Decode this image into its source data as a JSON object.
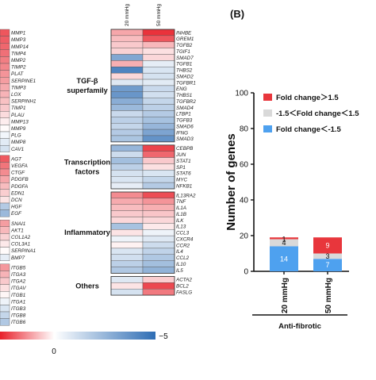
{
  "heatmap": {
    "column_headers": [
      "20 mmHg",
      "50 mmHg"
    ],
    "colorbar": {
      "tick_min": "0",
      "tick_max": "−5"
    },
    "left_genes": [
      "MMP1",
      "MMP3",
      "MMP14",
      "TIMP4",
      "MMP2",
      "TIMP2",
      "PLAT",
      "SERPINE1",
      "TIMP3",
      "LOX",
      "SERPINH1",
      "TIMP1",
      "PLAU",
      "MMP13",
      "MMP9",
      "PLG",
      "MMP8",
      "CAV1",
      "AGT",
      "VEGFA",
      "CTGF",
      "PDGFB",
      "PDGFA",
      "EDN1",
      "DCN",
      "HGF",
      "EGF",
      "SNAI1",
      "AKT1",
      "COL1A2",
      "COL3A1",
      "SERPINA1",
      "BMP7",
      "ITGB5",
      "ITGA3",
      "ITGA2",
      "ITGAV",
      "ITGB1",
      "ITGA1",
      "ITGB3",
      "ITGB8",
      "ITGB6"
    ],
    "left_values": [
      3.8,
      3.6,
      3.4,
      3.2,
      2.9,
      2.7,
      2.4,
      2.2,
      1.9,
      1.7,
      1.4,
      1.2,
      0.8,
      0.4,
      0.1,
      -0.3,
      -0.7,
      -1.0,
      3.7,
      3.1,
      2.6,
      2.0,
      1.5,
      1.1,
      0.6,
      -1.8,
      -2.4,
      2.2,
      1.6,
      1.0,
      0.5,
      0.1,
      -0.6,
      2.3,
      1.7,
      1.2,
      0.7,
      0.2,
      -0.4,
      -0.9,
      -1.4,
      -1.9
    ],
    "right_groups": [
      {
        "name": "TGF-β superfamily",
        "genes": [
          {
            "gene": "INHBE",
            "v20": 2.0,
            "v50": 4.6
          },
          {
            "gene": "GREM1",
            "v20": 1.5,
            "v50": 3.8
          },
          {
            "gene": "TGFB2",
            "v20": 1.2,
            "v50": 1.6
          },
          {
            "gene": "TGIF1",
            "v20": 1.0,
            "v50": 0.7
          },
          {
            "gene": "SMAD7",
            "v20": -3.0,
            "v50": 0.9
          },
          {
            "gene": "TGFB1",
            "v20": 1.8,
            "v50": -0.6
          },
          {
            "gene": "THBS2",
            "v20": -4.2,
            "v50": -0.9
          },
          {
            "gene": "SMAD2",
            "v20": 0.9,
            "v50": -1.0
          },
          {
            "gene": "TGFBR1",
            "v20": -0.8,
            "v50": -0.7
          },
          {
            "gene": "ENG",
            "v20": -3.4,
            "v50": -1.3
          },
          {
            "gene": "THBS1",
            "v20": -3.6,
            "v50": -1.1
          },
          {
            "gene": "TGFBR2",
            "v20": -2.8,
            "v50": -1.4
          },
          {
            "gene": "SMAD4",
            "v20": -2.4,
            "v50": -1.6
          },
          {
            "gene": "LTBP1",
            "v20": -1.3,
            "v50": -1.8
          },
          {
            "gene": "TGFB3",
            "v20": -1.6,
            "v50": -2.1
          },
          {
            "gene": "SMAD6",
            "v20": -1.4,
            "v50": -2.5
          },
          {
            "gene": "IFNG",
            "v20": -1.8,
            "v50": -3.1
          },
          {
            "gene": "SMAD3",
            "v20": -2.0,
            "v50": -3.7
          }
        ]
      },
      {
        "name": "Transcription factors",
        "genes": [
          {
            "gene": "CEBPB",
            "v20": -2.5,
            "v50": 4.2
          },
          {
            "gene": "JUN",
            "v20": -1.2,
            "v50": 3.4
          },
          {
            "gene": "STAT1",
            "v20": -2.2,
            "v50": 1.2
          },
          {
            "gene": "SP1",
            "v20": -1.6,
            "v50": 0.7
          },
          {
            "gene": "STAT6",
            "v20": -1.0,
            "v50": -0.9
          },
          {
            "gene": "MYC",
            "v20": -0.9,
            "v50": -1.4
          },
          {
            "gene": "NFKB1",
            "v20": -0.6,
            "v50": -1.8
          }
        ]
      },
      {
        "name": "Inflammatory",
        "genes": [
          {
            "gene": "IL13RA2",
            "v20": 2.6,
            "v50": 4.0
          },
          {
            "gene": "TNF",
            "v20": 1.9,
            "v50": 2.4
          },
          {
            "gene": "IL1A",
            "v20": 1.5,
            "v50": 1.8
          },
          {
            "gene": "IL1B",
            "v20": 1.2,
            "v50": 1.3
          },
          {
            "gene": "ILK",
            "v20": 0.9,
            "v50": 0.9
          },
          {
            "gene": "IL13",
            "v20": -2.1,
            "v50": 0.5
          },
          {
            "gene": "CCL3",
            "v20": 0.6,
            "v50": -0.4
          },
          {
            "gene": "CXCR4",
            "v20": -0.4,
            "v50": -0.8
          },
          {
            "gene": "CCR2",
            "v20": 0.3,
            "v50": -1.2
          },
          {
            "gene": "IL4",
            "v20": -0.9,
            "v50": -1.5
          },
          {
            "gene": "CCL2",
            "v20": -1.1,
            "v50": -1.9
          },
          {
            "gene": "IL10",
            "v20": -1.6,
            "v50": -2.2
          },
          {
            "gene": "IL5",
            "v20": -1.9,
            "v50": -2.6
          }
        ]
      },
      {
        "name": "Others",
        "genes": [
          {
            "gene": "ACTA2",
            "v20": -0.8,
            "v50": 1.1
          },
          {
            "gene": "BCL2",
            "v20": 0.6,
            "v50": 4.1
          },
          {
            "gene": "FASLG",
            "v20": -1.0,
            "v50": 3.0
          }
        ]
      }
    ],
    "colors": {
      "high": "#e8202a",
      "mid": "#ffffff",
      "low": "#2e6db4"
    },
    "vmin": -5,
    "vmax": 5
  },
  "chart_data": {
    "type": "bar",
    "stacked": true,
    "panel_label": "(B)",
    "categories": [
      "20 mmHg",
      "50 mmHg"
    ],
    "group_label": "Anti-fibrotic",
    "ylabel": "Number of genes",
    "ylim": [
      0,
      100
    ],
    "yticks": [
      0,
      20,
      40,
      60,
      80,
      100
    ],
    "legend_position": "top-right",
    "series": [
      {
        "name": "Fold change＜-1.5",
        "values": [
          14,
          7
        ],
        "color": "#4ea1ef",
        "labels": [
          "14",
          "7"
        ]
      },
      {
        "name": "-1.5＜Fold change＜1.5",
        "values": [
          4,
          3
        ],
        "color": "#d9d9d9",
        "labels": [
          "4",
          "3"
        ]
      },
      {
        "name": "Fold change＞1.5",
        "values": [
          1,
          9
        ],
        "color": "#e8363c",
        "labels": [
          "1",
          "9"
        ]
      }
    ],
    "legend_order": [
      2,
      1,
      0
    ]
  }
}
